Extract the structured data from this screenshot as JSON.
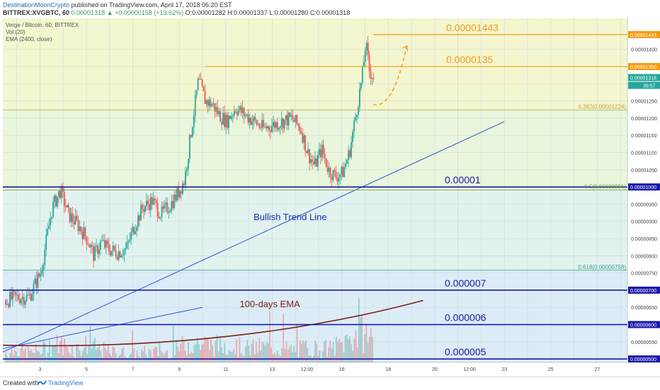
{
  "header": {
    "author": "DestinationMoonCrypto",
    "published_text": " published on TradingView.com, April 17, 2018 06:20 EST",
    "symbol": "BITTREX:XVGBTC, 60",
    "change": "0.00001318 ▲ +0.00000158 (+13.62%)",
    "ohlc": "O:0.00001282 H:0.00001337 L:0.00001280 C:0.00001318"
  },
  "legend": [
    "Verge / Bitcoin, 60, BITTREX",
    "Vol (20)",
    "EMA (2400, close)"
  ],
  "footer": {
    "created": "Created with",
    "brand": "TradingView"
  },
  "colors": {
    "candle_up": "#26a69a",
    "candle_down": "#ef5350",
    "support_line": "#1a1aa8",
    "resistance_line": "#f39c12",
    "trend_line": "#2b4fd8",
    "ema_line": "#7b1e1e"
  },
  "chart_data": {
    "type": "candlestick",
    "instrument": "Verge / Bitcoin",
    "timeframe": "60",
    "exchange": "BITTREX",
    "ylim": [
      4.9e-06,
      1.49e-05
    ],
    "y_scale": "linear",
    "grid": true,
    "y_ticks": [
      "0.00001400",
      "0.00001350",
      "0.00001300",
      "0.00001250",
      "0.00001200",
      "0.00001150",
      "0.00001100",
      "0.00001050",
      "0.00001000",
      "0.00000950",
      "0.00000900",
      "0.00000850",
      "0.00000800",
      "0.00000750",
      "0.00000700",
      "0.00000650",
      "0.00000600",
      "0.00000550",
      "0.00000500"
    ],
    "x_ticks": [
      "3",
      "5",
      "7",
      "9",
      "11",
      "13",
      "12:00",
      "16",
      "18",
      "20",
      "12:00",
      "23",
      "25",
      "27"
    ],
    "x_tick_days": [
      3,
      5,
      7,
      9,
      11,
      13,
      14.5,
      16,
      18,
      20,
      21.5,
      23,
      25,
      27
    ],
    "x_range_days": [
      1.4,
      28.3
    ],
    "price_series": {
      "days": [
        1.5,
        2.0,
        2.5,
        3.0,
        3.5,
        3.85,
        4.2,
        4.6,
        5.0,
        5.3,
        5.6,
        5.9,
        6.3,
        6.7,
        7.0,
        7.4,
        7.8,
        8.2,
        8.6,
        8.9,
        9.2,
        9.5,
        9.8,
        10.1,
        10.4,
        10.7,
        11.0,
        11.4,
        11.8,
        12.2,
        12.6,
        13.0,
        13.4,
        13.8,
        14.2,
        14.5,
        14.8,
        15.1,
        15.4,
        15.7,
        16.0,
        16.3,
        16.6,
        16.85,
        17.0,
        17.15,
        17.35
      ],
      "prices": [
        6.7e-06,
        6.8e-06,
        6.8e-06,
        7.5e-06,
        9.4e-06,
        9.9e-06,
        9.2e-06,
        8.9e-06,
        8.5e-06,
        8e-06,
        8.4e-06,
        8.2e-06,
        8.1e-06,
        8.2e-06,
        8.8e-06,
        9.4e-06,
        9.6e-06,
        9.2e-06,
        9.5e-06,
        9.8e-06,
        1.02e-05,
        1.17e-05,
        1.31e-05,
        1.25e-05,
        1.24e-05,
        1.21e-05,
        1.19e-05,
        1.23e-05,
        1.21e-05,
        1.19e-05,
        1.17e-05,
        1.18e-05,
        1.19e-05,
        1.2e-05,
        1.17e-05,
        1.1e-05,
        1.06e-05,
        1.11e-05,
        1.05e-05,
        1.03e-05,
        1.04e-05,
        1.1e-05,
        1.22e-05,
        1.32e-05,
        1.42e-05,
        1.34e-05,
        1.318e-05
      ]
    },
    "volume_series": {
      "days": [
        1.5,
        2.0,
        2.5,
        3.0,
        3.5,
        4.0,
        4.5,
        5.0,
        5.5,
        6.0,
        6.5,
        7.0,
        7.5,
        8.0,
        8.5,
        9.0,
        9.5,
        10.0,
        10.5,
        11.0,
        11.5,
        12.0,
        12.5,
        13.0,
        13.5,
        14.0,
        14.5,
        15.0,
        15.5,
        16.0,
        16.5,
        17.0,
        17.3
      ],
      "values": [
        0.3,
        0.35,
        0.3,
        0.35,
        0.55,
        0.5,
        0.4,
        0.5,
        0.4,
        0.3,
        0.3,
        0.25,
        0.3,
        0.3,
        0.3,
        0.45,
        0.6,
        0.55,
        0.5,
        0.5,
        0.45,
        0.4,
        0.45,
        0.45,
        0.4,
        0.35,
        0.45,
        0.4,
        0.4,
        0.55,
        0.8,
        0.85,
        0.7
      ]
    },
    "horizontal_levels": [
      {
        "price": 1.443e-05,
        "label": "0.00001443",
        "style": "resistance"
      },
      {
        "price": 1.35e-05,
        "label": "0.0000135",
        "style": "resistance"
      },
      {
        "price": 1e-05,
        "label": "0.00001",
        "style": "support"
      },
      {
        "price": 7e-06,
        "label": "0.000007",
        "style": "support"
      },
      {
        "price": 6e-06,
        "label": "0.000006",
        "style": "support"
      },
      {
        "price": 5e-06,
        "label": "0.000005",
        "style": "support"
      }
    ],
    "fib_levels": [
      {
        "price": 1.224e-05,
        "label": "0.382(0.00001224)"
      },
      {
        "price": 9.91e-06,
        "label": "0.5(0.00000991)"
      },
      {
        "price": 7.58e-06,
        "label": "0.618(0.00000758)"
      }
    ],
    "trend_line": {
      "label": "Bullish Trend Line",
      "from": [
        1.4,
        5.2e-06
      ],
      "to": [
        23,
        1.19e-05
      ]
    },
    "secondary_trend_line": {
      "from": [
        1.4,
        5.3e-06
      ],
      "to": [
        10.0,
        6.5e-06
      ]
    },
    "ema": {
      "label": "100-days EMA",
      "from": [
        1.4,
        5.4e-06
      ],
      "to": [
        19.5,
        6.7e-06
      ]
    },
    "projection_arrow": {
      "from": [
        17.35,
        1.24e-05
      ],
      "to": [
        18.8,
        1.41e-05
      ]
    },
    "price_axis_labels": {
      "top": "0.00001443",
      "resistance": "0.00001350",
      "current": "0.00001318",
      "countdown": "39:57",
      "support": "0.00001000",
      "level7": "0.00000700",
      "level6": "0.00000600",
      "level5": "0.00000500"
    }
  }
}
